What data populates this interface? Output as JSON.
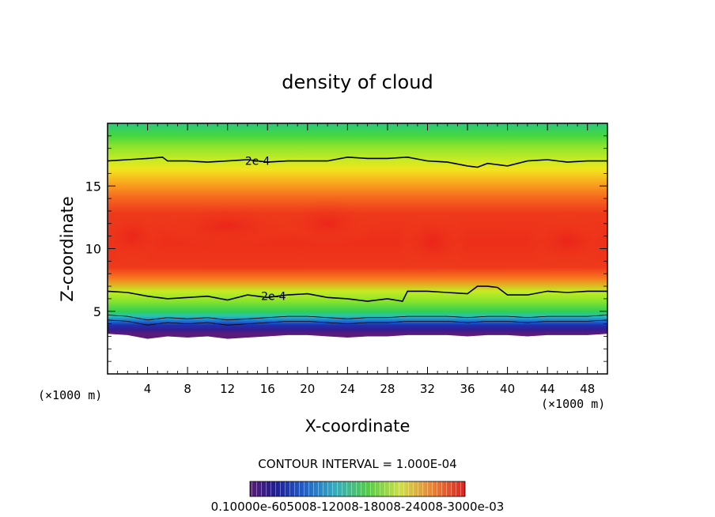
{
  "chart_data": {
    "type": "heatmap",
    "title": "density of cloud",
    "xlabel": "X-coordinate",
    "ylabel": "Z-coordinate",
    "x_unit": "(×1000 m)",
    "z_unit": "(×1000 m)",
    "xlim": [
      0,
      50
    ],
    "ylim": [
      0,
      20
    ],
    "x_ticks": [
      4,
      8,
      12,
      16,
      20,
      24,
      28,
      32,
      36,
      40,
      44,
      48
    ],
    "y_ticks": [
      5,
      10,
      15
    ],
    "contour_interval_text": "CONTOUR INTERVAL = 1.000E-04",
    "contour_labels": [
      {
        "text": "2e-4",
        "x": 15.0,
        "z": 17.0
      },
      {
        "text": "2e-4",
        "x": 16.6,
        "z": 6.2
      }
    ],
    "upper_contour": {
      "x": [
        0,
        2,
        4,
        5.5,
        6,
        8,
        10,
        12,
        14,
        16,
        18,
        20,
        22,
        24,
        26,
        28,
        30,
        32,
        34,
        36,
        37,
        38,
        40,
        42,
        44,
        46,
        48,
        50
      ],
      "z": [
        17.0,
        17.1,
        17.2,
        17.3,
        17.0,
        17.0,
        16.9,
        17.0,
        17.1,
        16.9,
        17.0,
        17.0,
        17.0,
        17.3,
        17.2,
        17.2,
        17.3,
        17.0,
        16.9,
        16.6,
        16.5,
        16.8,
        16.6,
        17.0,
        17.1,
        16.9,
        17.0,
        17.0
      ]
    },
    "lower_contour": {
      "x": [
        0,
        2,
        4,
        6,
        8,
        10,
        12,
        14,
        16,
        18,
        20,
        22,
        24,
        26,
        28,
        29.5,
        30,
        32,
        34,
        36,
        37,
        38,
        39,
        40,
        42,
        44,
        46,
        48,
        50
      ],
      "z": [
        6.6,
        6.5,
        6.2,
        6.0,
        6.1,
        6.2,
        5.9,
        6.3,
        6.1,
        6.3,
        6.4,
        6.1,
        6.0,
        5.8,
        6.0,
        5.8,
        6.6,
        6.6,
        6.5,
        6.4,
        7.0,
        7.0,
        6.9,
        6.3,
        6.3,
        6.6,
        6.5,
        6.6,
        6.6
      ]
    },
    "cloud_base": {
      "x": [
        0,
        2,
        4,
        6,
        8,
        10,
        12,
        14,
        16,
        18,
        20,
        22,
        24,
        26,
        28,
        30,
        32,
        34,
        36,
        38,
        40,
        42,
        44,
        46,
        48,
        50
      ],
      "z": [
        3.2,
        3.1,
        2.8,
        3.0,
        2.9,
        3.0,
        2.8,
        2.9,
        3.0,
        3.1,
        3.1,
        3.0,
        2.9,
        3.0,
        3.0,
        3.1,
        3.1,
        3.1,
        3.0,
        3.1,
        3.1,
        3.0,
        3.1,
        3.1,
        3.1,
        3.2
      ]
    },
    "bands": [
      {
        "z": 19.9,
        "value": 0.00014
      },
      {
        "z": 19.0,
        "value": 0.00016
      },
      {
        "z": 18.2,
        "value": 0.00018
      },
      {
        "z": 17.1,
        "value": 0.0002
      },
      {
        "z": 16.3,
        "value": 0.00022
      },
      {
        "z": 15.3,
        "value": 0.00025
      },
      {
        "z": 14.0,
        "value": 0.00028
      },
      {
        "z": 12.8,
        "value": 0.0003
      },
      {
        "z": 10.5,
        "value": 0.000305
      },
      {
        "z": 8.5,
        "value": 0.0003
      },
      {
        "z": 7.6,
        "value": 0.00027
      },
      {
        "z": 6.6,
        "value": 0.0002
      },
      {
        "z": 5.8,
        "value": 0.00018
      },
      {
        "z": 5.0,
        "value": 0.00015
      },
      {
        "z": 4.6,
        "value": 0.00012
      },
      {
        "z": 4.2,
        "value": 8e-05
      },
      {
        "z": 3.9,
        "value": 5e-05
      },
      {
        "z": 3.55,
        "value": 3e-05
      },
      {
        "z": 3.2,
        "value": 1e-05
      }
    ],
    "vmin": 1e-05,
    "vmax": 0.00031,
    "hot_spots": [
      {
        "x": 2.5,
        "z": 11.0,
        "rx": 3.0,
        "rz": 2.2
      },
      {
        "x": 12.0,
        "z": 11.8,
        "rx": 7.0,
        "rz": 1.8
      },
      {
        "x": 22.0,
        "z": 12.0,
        "rx": 5.0,
        "rz": 1.8
      },
      {
        "x": 32.5,
        "z": 10.5,
        "rx": 3.5,
        "rz": 2.6
      },
      {
        "x": 46.0,
        "z": 10.6,
        "rx": 4.0,
        "rz": 2.2
      }
    ],
    "colorbar_tick_text": "0.10000e-605008-12008-18008-24008-3000e-03"
  }
}
